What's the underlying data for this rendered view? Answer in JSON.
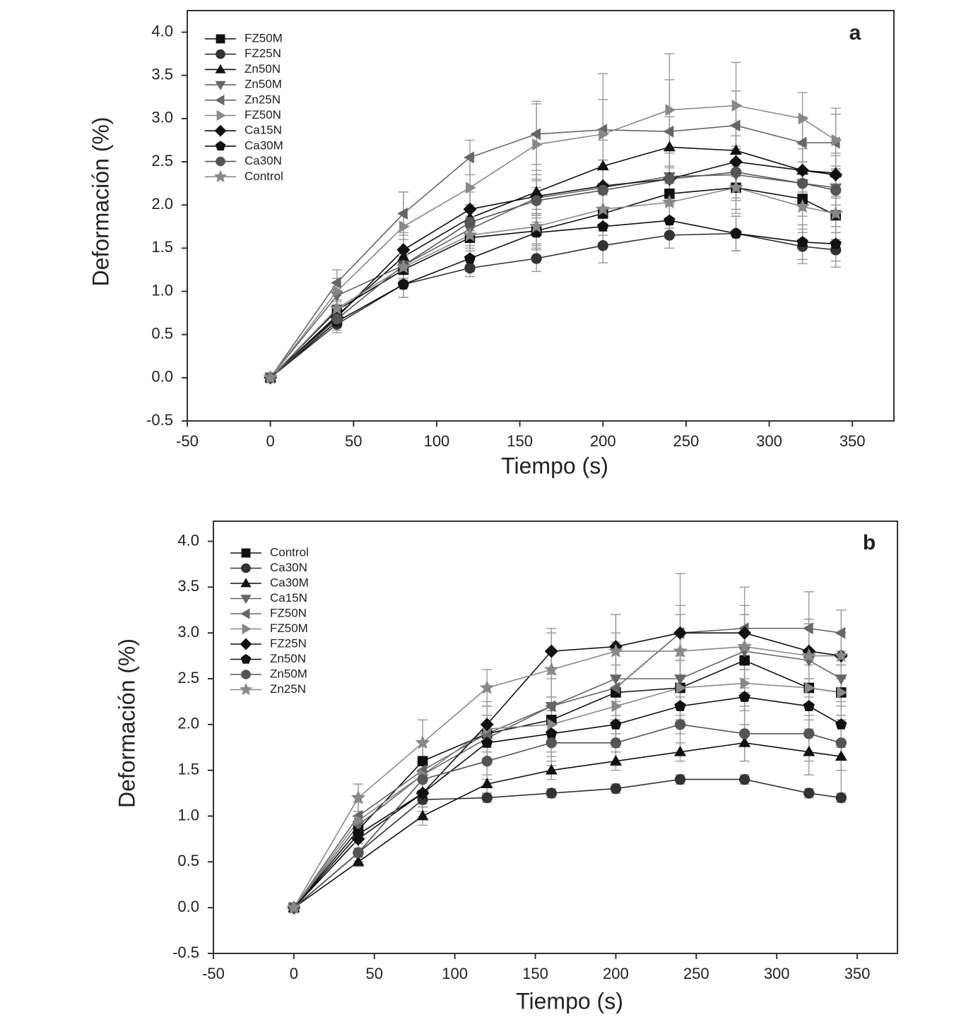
{
  "chart_data": [
    {
      "type": "line",
      "panel_label": "a",
      "x_label": "Tiempo (s)",
      "y_label": "Deformación (%)",
      "xlim": [
        -50,
        375
      ],
      "ylim": [
        -0.5,
        4.25
      ],
      "xticks": [
        -50,
        0,
        50,
        100,
        150,
        200,
        250,
        300,
        350
      ],
      "yticks": [
        -0.5,
        {
          "value": 0,
          "label": "0.0"
        },
        0.5,
        {
          "value": 1,
          "label": "1.0"
        },
        1.5,
        {
          "value": 2,
          "label": "2.0"
        },
        2.5,
        {
          "value": 3,
          "label": "3.0"
        },
        3.5,
        {
          "value": 4,
          "label": "4.0"
        }
      ],
      "legend": "upper left",
      "x": [
        0,
        40,
        80,
        120,
        160,
        200,
        240,
        280,
        320,
        340
      ],
      "series": [
        {
          "name": "FZ50M",
          "color": "#111111",
          "marker": "square",
          "values": [
            0,
            0.78,
            1.25,
            1.62,
            1.7,
            1.9,
            2.13,
            2.2,
            2.07,
            1.88
          ],
          "errors": [
            0,
            0.1,
            0.15,
            0.15,
            0.2,
            0.25,
            0.3,
            0.25,
            0.2,
            0.2
          ]
        },
        {
          "name": "FZ25N",
          "color": "#333333",
          "marker": "circle",
          "values": [
            0,
            0.62,
            1.08,
            1.27,
            1.38,
            1.53,
            1.65,
            1.67,
            1.52,
            1.48
          ],
          "errors": [
            0,
            0.1,
            0.15,
            0.1,
            0.15,
            0.2,
            0.15,
            0.2,
            0.2,
            0.2
          ]
        },
        {
          "name": "Zn50N",
          "color": "#111111",
          "marker": "triangle-up",
          "values": [
            0,
            0.72,
            1.4,
            1.85,
            2.15,
            2.45,
            2.67,
            2.63,
            2.4,
            2.37
          ],
          "errors": [
            0,
            0.1,
            0.2,
            0.15,
            0.25,
            0.3,
            0.35,
            0.3,
            0.25,
            0.2
          ]
        },
        {
          "name": "Zn50M",
          "color": "#666666",
          "marker": "triangle-down",
          "values": [
            0,
            0.95,
            1.3,
            1.72,
            2.08,
            2.2,
            2.33,
            2.35,
            2.25,
            2.2
          ],
          "errors": [
            0,
            0.1,
            0.15,
            0.15,
            0.2,
            0.25,
            0.3,
            0.3,
            0.25,
            0.2
          ]
        },
        {
          "name": "Zn25N",
          "color": "#666666",
          "marker": "triangle-left",
          "values": [
            0,
            1.1,
            1.9,
            2.55,
            2.82,
            2.87,
            2.85,
            2.92,
            2.72,
            2.72
          ],
          "errors": [
            0,
            0.15,
            0.25,
            0.2,
            0.35,
            0.35,
            0.6,
            0.4,
            0.3,
            0.4
          ]
        },
        {
          "name": "FZ50N",
          "color": "#888888",
          "marker": "triangle-right",
          "values": [
            0,
            1.0,
            1.75,
            2.2,
            2.7,
            2.82,
            3.1,
            3.15,
            3.0,
            2.75
          ],
          "errors": [
            0,
            0.15,
            0.4,
            0.35,
            0.5,
            0.7,
            0.65,
            0.5,
            0.3,
            0.3
          ]
        },
        {
          "name": "Ca15N",
          "color": "#111111",
          "marker": "diamond",
          "values": [
            0,
            0.7,
            1.48,
            1.95,
            2.1,
            2.22,
            2.3,
            2.5,
            2.4,
            2.35
          ],
          "errors": [
            0,
            0.1,
            0.2,
            0.2,
            0.25,
            0.3,
            0.3,
            0.3,
            0.25,
            0.25
          ]
        },
        {
          "name": "Ca30M",
          "color": "#111111",
          "marker": "pentagon",
          "values": [
            0,
            0.65,
            1.08,
            1.38,
            1.68,
            1.75,
            1.82,
            1.67,
            1.57,
            1.55
          ],
          "errors": [
            0,
            0.1,
            0.15,
            0.15,
            0.2,
            0.2,
            0.2,
            0.2,
            0.2,
            0.2
          ]
        },
        {
          "name": "Ca30N",
          "color": "#555555",
          "marker": "circle",
          "values": [
            0,
            0.68,
            1.3,
            1.8,
            2.05,
            2.17,
            2.3,
            2.38,
            2.25,
            2.17
          ],
          "errors": [
            0,
            0.1,
            0.2,
            0.2,
            0.25,
            0.25,
            0.3,
            0.3,
            0.25,
            0.25
          ]
        },
        {
          "name": "Control",
          "color": "#888888",
          "marker": "star",
          "values": [
            0,
            0.8,
            1.28,
            1.65,
            1.75,
            1.95,
            2.03,
            2.2,
            1.98,
            1.9
          ],
          "errors": [
            0,
            0.1,
            0.15,
            0.15,
            0.2,
            0.25,
            0.3,
            0.3,
            0.3,
            0.3
          ]
        }
      ]
    },
    {
      "type": "line",
      "panel_label": "b",
      "x_label": "Tiempo (s)",
      "y_label": "Deformación (%)",
      "xlim": [
        -50,
        375
      ],
      "ylim": [
        -0.5,
        4.22
      ],
      "xticks": [
        -50,
        0,
        50,
        100,
        150,
        200,
        250,
        300,
        350
      ],
      "yticks": [
        -0.5,
        {
          "value": 0,
          "label": "0.0"
        },
        0.5,
        {
          "value": 1,
          "label": "1.0"
        },
        1.5,
        {
          "value": 2,
          "label": "2.0"
        },
        2.5,
        {
          "value": 3,
          "label": "3.0"
        },
        3.5,
        {
          "value": 4,
          "label": "4.0"
        }
      ],
      "legend": "upper left",
      "x": [
        0,
        40,
        80,
        120,
        160,
        200,
        240,
        280,
        320,
        340
      ],
      "series": [
        {
          "name": "Control",
          "color": "#111111",
          "marker": "square",
          "values": [
            0,
            0.85,
            1.6,
            1.9,
            2.05,
            2.35,
            2.4,
            2.7,
            2.4,
            2.35
          ],
          "errors": [
            0,
            0.1,
            0.2,
            0.2,
            0.25,
            0.3,
            0.35,
            0.35,
            0.35,
            0.3
          ]
        },
        {
          "name": "Ca30N",
          "color": "#333333",
          "marker": "circle",
          "values": [
            0,
            0.6,
            1.18,
            1.2,
            1.25,
            1.3,
            1.4,
            1.4,
            1.25,
            1.2
          ],
          "errors": [
            0,
            0.05,
            0.05,
            0.05,
            0.05,
            0.05,
            0.05,
            0.05,
            0.05,
            0.05
          ]
        },
        {
          "name": "Ca30M",
          "color": "#111111",
          "marker": "triangle-up",
          "values": [
            0,
            0.5,
            1.0,
            1.35,
            1.5,
            1.6,
            1.7,
            1.8,
            1.7,
            1.65
          ],
          "errors": [
            0,
            0.05,
            0.1,
            0.1,
            0.1,
            0.1,
            0.1,
            0.2,
            0.25,
            0.45
          ]
        },
        {
          "name": "Ca15N",
          "color": "#666666",
          "marker": "triangle-down",
          "values": [
            0,
            0.9,
            1.45,
            1.85,
            2.2,
            2.5,
            2.5,
            2.8,
            2.7,
            2.5
          ],
          "errors": [
            0,
            0.1,
            0.2,
            0.25,
            0.3,
            0.4,
            0.5,
            0.4,
            0.4,
            0.3
          ]
        },
        {
          "name": "FZ50N",
          "color": "#666666",
          "marker": "triangle-left",
          "values": [
            0,
            1.0,
            1.5,
            1.9,
            2.2,
            2.4,
            3.0,
            3.05,
            3.05,
            3.0
          ],
          "errors": [
            0,
            0.15,
            0.3,
            0.3,
            0.35,
            0.6,
            0.65,
            0.45,
            0.4,
            0.25
          ]
        },
        {
          "name": "FZ50M",
          "color": "#888888",
          "marker": "triangle-right",
          "values": [
            0,
            0.95,
            1.45,
            1.95,
            2.0,
            2.2,
            2.4,
            2.45,
            2.4,
            2.35
          ],
          "errors": [
            0,
            0.1,
            0.2,
            0.25,
            0.3,
            0.3,
            0.3,
            0.3,
            0.3,
            0.3
          ]
        },
        {
          "name": "FZ25N",
          "color": "#111111",
          "marker": "diamond",
          "values": [
            0,
            0.75,
            1.25,
            2.0,
            2.8,
            2.85,
            3.0,
            3.0,
            2.8,
            2.75
          ],
          "errors": [
            0,
            0.1,
            0.2,
            0.25,
            0.25,
            0.35,
            0.3,
            0.3,
            0.3,
            0.25
          ]
        },
        {
          "name": "Zn50N",
          "color": "#111111",
          "marker": "pentagon",
          "values": [
            0,
            0.8,
            1.25,
            1.8,
            1.9,
            2.0,
            2.2,
            2.3,
            2.2,
            2.0
          ],
          "errors": [
            0,
            0.1,
            0.15,
            0.2,
            0.25,
            0.25,
            0.3,
            0.3,
            0.3,
            0.25
          ]
        },
        {
          "name": "Zn50M",
          "color": "#555555",
          "marker": "circle",
          "values": [
            0,
            0.6,
            1.4,
            1.6,
            1.8,
            1.8,
            2.0,
            1.9,
            1.9,
            1.8
          ],
          "errors": [
            0,
            0.1,
            0.2,
            0.2,
            0.25,
            0.25,
            0.3,
            0.3,
            0.3,
            0.3
          ]
        },
        {
          "name": "Zn25N",
          "color": "#888888",
          "marker": "star",
          "values": [
            0,
            1.2,
            1.8,
            2.4,
            2.6,
            2.8,
            2.8,
            2.85,
            2.75,
            2.75
          ],
          "errors": [
            0,
            0.15,
            0.25,
            0.2,
            0.4,
            0.4,
            0.4,
            0.35,
            0.4,
            0.25
          ]
        }
      ]
    }
  ]
}
